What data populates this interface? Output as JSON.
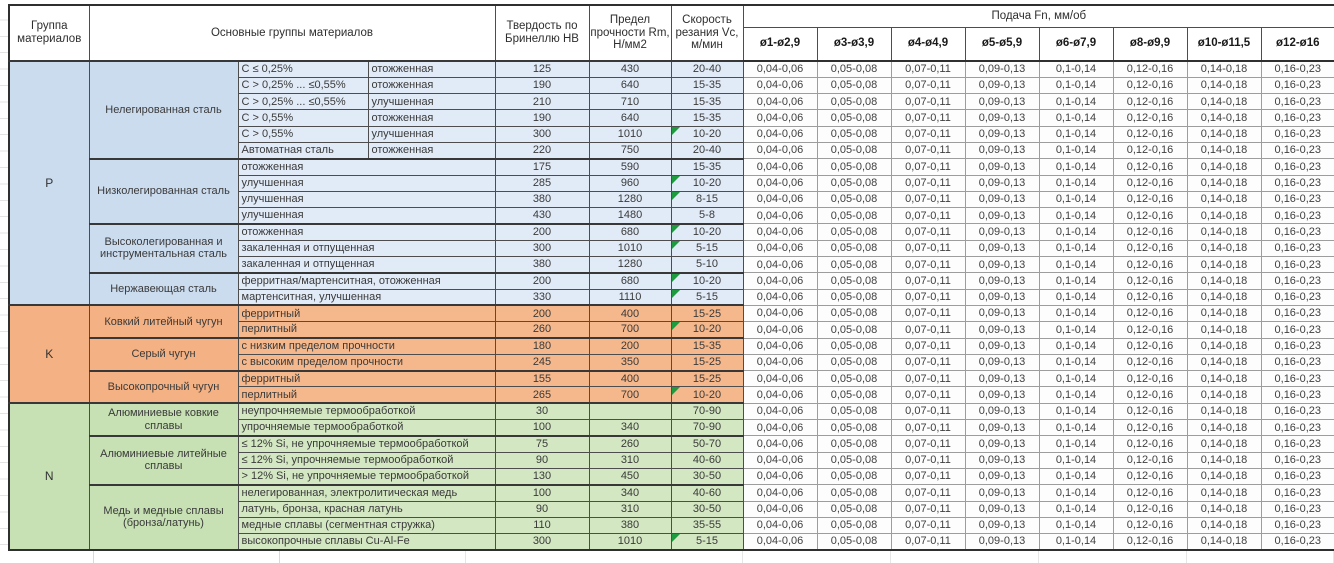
{
  "header": {
    "col_group": "Группа материалов",
    "col_main": "Основные группы материалов",
    "col_hb": "Твердость по Бринеллю HB",
    "col_rm": "Предел прочности Rm, Н/мм2",
    "col_vc": "Скорость резания Vc, м/мин",
    "feed_title": "Подача Fn, мм/об",
    "feed_cols": [
      "ø1-ø2,9",
      "ø3-ø3,9",
      "ø4-ø4,9",
      "ø5-ø5,9",
      "ø6-ø7,9",
      "ø8-ø9,9",
      "ø10-ø11,5",
      "ø12-ø16"
    ]
  },
  "feed_values": [
    "0,04-0,06",
    "0,05-0,08",
    "0,07-0,11",
    "0,09-0,13",
    "0,1-0,14",
    "0,12-0,16",
    "0,14-0,18",
    "0,16-0,23"
  ],
  "colors": {
    "flag": "#1d9b3e"
  },
  "groups": [
    {
      "code": "P",
      "head_color": "#cbdcef",
      "cell_color": "#e1ebf7",
      "subgroups": [
        {
          "name": "Нелегированная сталь",
          "rows": [
            {
              "detail": "C ≤ 0,25%",
              "state": "отожженная",
              "hb": "125",
              "rm": "430",
              "vc": "20-40",
              "mark": false
            },
            {
              "detail": "C > 0,25% ... ≤0,55%",
              "state": "отожженная",
              "hb": "190",
              "rm": "640",
              "vc": "15-35",
              "mark": false
            },
            {
              "detail": "C > 0,25% ... ≤0,55%",
              "state": "улучшенная",
              "hb": "210",
              "rm": "710",
              "vc": "15-35",
              "mark": false
            },
            {
              "detail": "C > 0,55%",
              "state": "отожженная",
              "hb": "190",
              "rm": "640",
              "vc": "15-35",
              "mark": false
            },
            {
              "detail": "C > 0,55%",
              "state": "улучшенная",
              "hb": "300",
              "rm": "1010",
              "vc": "10-20",
              "mark": true
            },
            {
              "detail": "Автоматная сталь",
              "state": "отожженная",
              "hb": "220",
              "rm": "750",
              "vc": "20-40",
              "mark": false
            }
          ]
        },
        {
          "name": "Низколегированная сталь",
          "rows": [
            {
              "detail": "отожженная",
              "hb": "175",
              "rm": "590",
              "vc": "15-35",
              "mark": false
            },
            {
              "detail": "улучшенная",
              "hb": "285",
              "rm": "960",
              "vc": "10-20",
              "mark": true
            },
            {
              "detail": "улучшенная",
              "hb": "380",
              "rm": "1280",
              "vc": "8-15",
              "mark": true
            },
            {
              "detail": "улучшенная",
              "hb": "430",
              "rm": "1480",
              "vc": "5-8",
              "mark": false
            }
          ]
        },
        {
          "name": "Высоколегированная и инструментальная сталь",
          "rows": [
            {
              "detail": "отожженная",
              "hb": "200",
              "rm": "680",
              "vc": "10-20",
              "mark": true
            },
            {
              "detail": "закаленная и отпущенная",
              "hb": "300",
              "rm": "1010",
              "vc": "5-15",
              "mark": true
            },
            {
              "detail": "закаленная и отпущенная",
              "hb": "380",
              "rm": "1280",
              "vc": "5-10",
              "mark": false
            }
          ]
        },
        {
          "name": "Нержавеющая сталь",
          "rows": [
            {
              "detail": "ферритная/мартенситная, отожженная",
              "hb": "200",
              "rm": "680",
              "vc": "10-20",
              "mark": true
            },
            {
              "detail": "мартенситная, улучшенная",
              "hb": "330",
              "rm": "1110",
              "vc": "5-15",
              "mark": true
            }
          ]
        }
      ]
    },
    {
      "code": "K",
      "head_color": "#f4b183",
      "cell_color": "#f5b88c",
      "subgroups": [
        {
          "name": "Ковкий литейный чугун",
          "rows": [
            {
              "detail": "ферритный",
              "hb": "200",
              "rm": "400",
              "vc": "15-25",
              "mark": false
            },
            {
              "detail": "перлитный",
              "hb": "260",
              "rm": "700",
              "vc": "10-20",
              "mark": true
            }
          ]
        },
        {
          "name": "Серый чугун",
          "rows": [
            {
              "detail": "с низким пределом прочности",
              "hb": "180",
              "rm": "200",
              "vc": "15-35",
              "mark": false
            },
            {
              "detail": "с высоким пределом прочности",
              "hb": "245",
              "rm": "350",
              "vc": "15-25",
              "mark": false
            }
          ]
        },
        {
          "name": "Высокопрочный чугун",
          "rows": [
            {
              "detail": "ферритный",
              "hb": "155",
              "rm": "400",
              "vc": "15-25",
              "mark": false
            },
            {
              "detail": "перлитный",
              "hb": "265",
              "rm": "700",
              "vc": "10-20",
              "mark": true
            }
          ]
        }
      ]
    },
    {
      "code": "N",
      "head_color": "#c7e0b4",
      "cell_color": "#d3e7c2",
      "subgroups": [
        {
          "name": "Алюминиевые ковкие сплавы",
          "rows": [
            {
              "detail": "неупрочняемые термообработкой",
              "hb": "30",
              "rm": "",
              "vc": "70-90",
              "mark": false
            },
            {
              "detail": "упрочняемые термообработкой",
              "hb": "100",
              "rm": "340",
              "vc": "70-90",
              "mark": false
            }
          ]
        },
        {
          "name": "Алюминиевые литейные сплавы",
          "rows": [
            {
              "detail": "≤ 12% Si, не упрочняемые термообработкой",
              "hb": "75",
              "rm": "260",
              "vc": "50-70",
              "mark": false
            },
            {
              "detail": "≤ 12% Si, упрочняемые термообработкой",
              "hb": "90",
              "rm": "310",
              "vc": "40-60",
              "mark": false
            },
            {
              "detail": "> 12% Si, не упрочняемые термообработкой",
              "hb": "130",
              "rm": "450",
              "vc": "30-50",
              "mark": false
            }
          ]
        },
        {
          "name": "Медь и медные сплавы (бронза/латунь)",
          "rows": [
            {
              "detail": "нелегированная, электролитическая медь",
              "hb": "100",
              "rm": "340",
              "vc": "40-60",
              "mark": false
            },
            {
              "detail": "латунь, бронза, красная латунь",
              "hb": "90",
              "rm": "310",
              "vc": "30-50",
              "mark": false
            },
            {
              "detail": "медные сплавы (сегментная стружка)",
              "hb": "110",
              "rm": "380",
              "vc": "35-55",
              "mark": false
            },
            {
              "detail": "высокопрочные сплавы Cu-Al-Fe",
              "hb": "300",
              "rm": "1010",
              "vc": "5-15",
              "mark": true
            }
          ]
        }
      ]
    }
  ]
}
